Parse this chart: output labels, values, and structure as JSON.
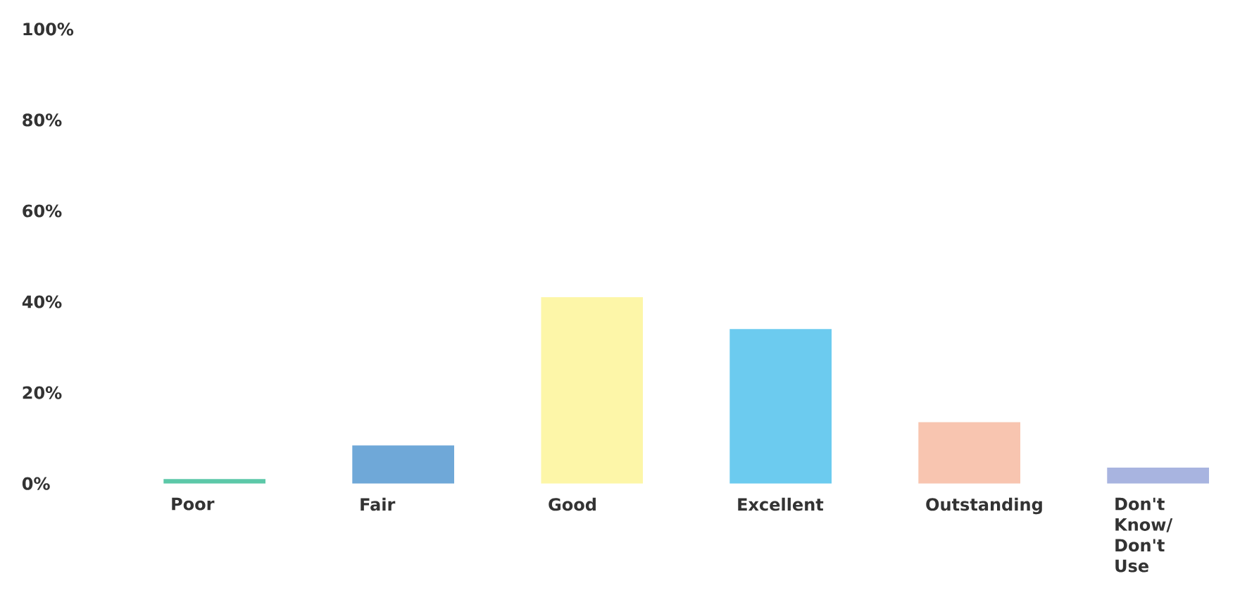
{
  "chart_data": {
    "type": "bar",
    "categories": [
      "Poor",
      "Fair",
      "Good",
      "Excellent",
      "Outstanding",
      "Don't Know/ Don't Use"
    ],
    "values": [
      1,
      8.4,
      41,
      34,
      13.5,
      3.5
    ],
    "colors": [
      "#5cc8a8",
      "#6fa8d8",
      "#fdf6a8",
      "#6ccbef",
      "#f8c5b0",
      "#a8b4e0"
    ],
    "ylim": [
      0,
      100
    ],
    "yticks": [
      {
        "value": 0,
        "label": "0%"
      },
      {
        "value": 20,
        "label": "20%"
      },
      {
        "value": 40,
        "label": "40%"
      },
      {
        "value": 60,
        "label": "60%"
      },
      {
        "value": 80,
        "label": "80%"
      },
      {
        "value": 100,
        "label": "100%"
      }
    ]
  }
}
